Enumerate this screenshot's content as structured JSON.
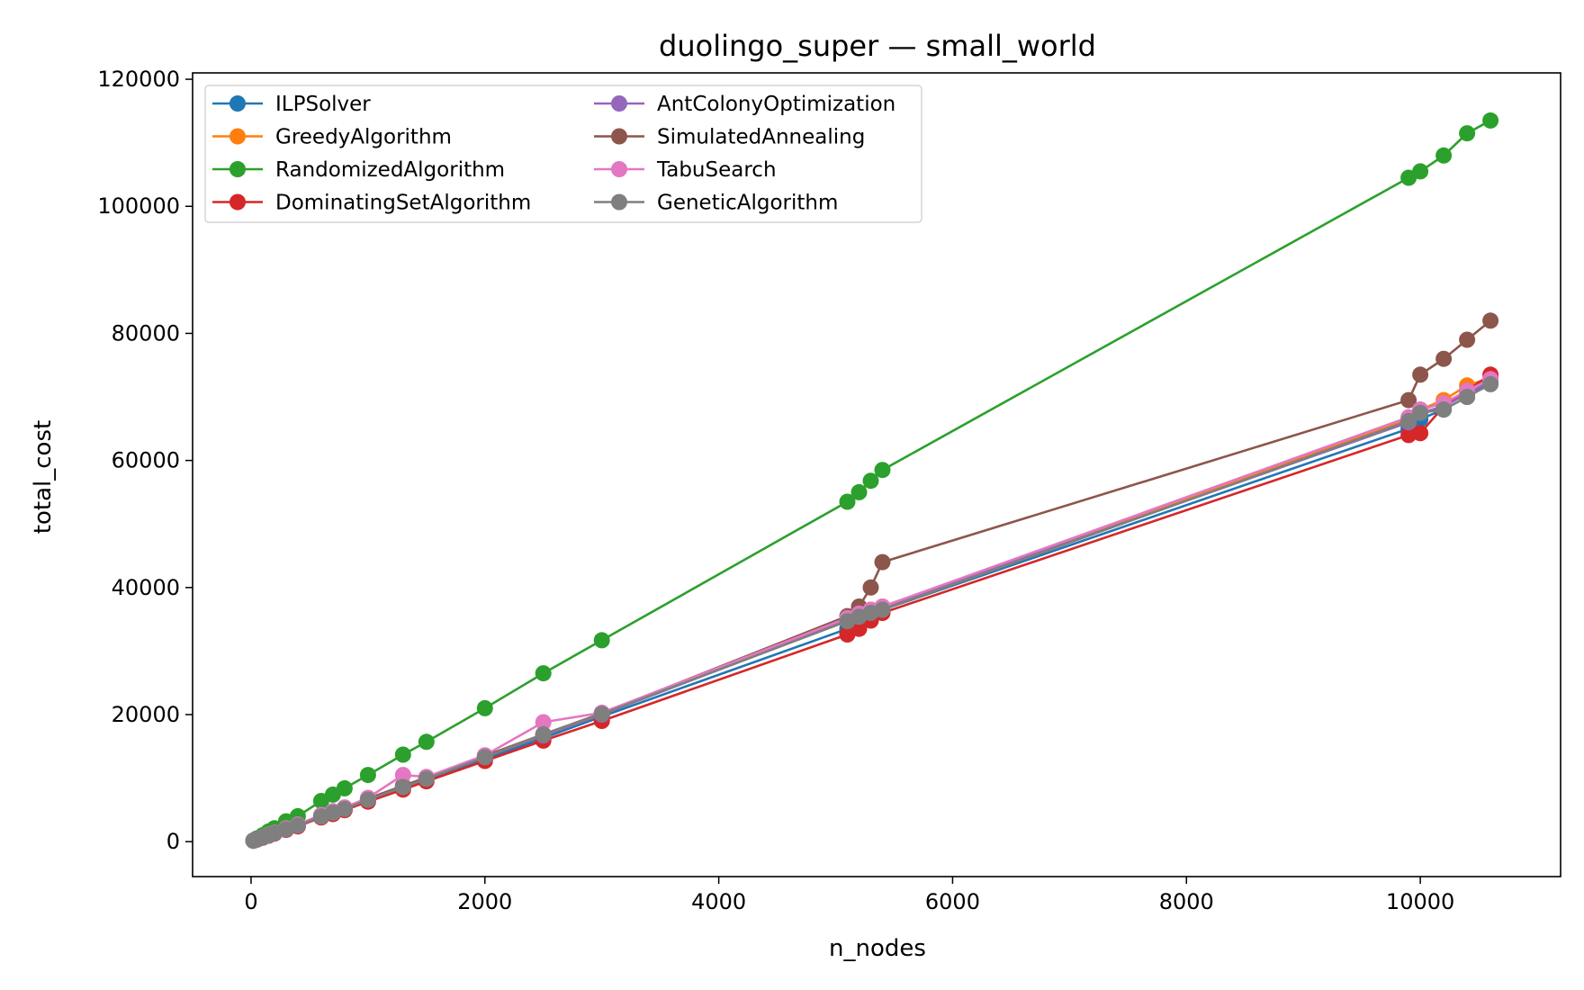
{
  "chart_data": {
    "type": "line",
    "title": "duolingo_super — small_world",
    "xlabel": "n_nodes",
    "ylabel": "total_cost",
    "xlim": [
      -500,
      11200
    ],
    "ylim": [
      -5500,
      121000
    ],
    "xticks": [
      0,
      2000,
      4000,
      6000,
      8000,
      10000
    ],
    "yticks": [
      0,
      20000,
      40000,
      60000,
      80000,
      100000,
      120000
    ],
    "grid": false,
    "legend_position": "top-left",
    "legend_columns": 2,
    "series": [
      {
        "name": "ILPSolver",
        "color": "#1f77b4",
        "x": [
          20,
          50,
          100,
          150,
          200,
          300,
          400,
          600,
          700,
          800,
          1000,
          1300,
          1500,
          2000,
          2500,
          3000,
          5100,
          5200,
          5300,
          5400,
          9900,
          10000,
          10200,
          10400,
          10600
        ],
        "y": [
          150,
          350,
          650,
          1000,
          1300,
          1900,
          2500,
          3900,
          4500,
          5100,
          6500,
          8500,
          9800,
          13000,
          16300,
          19700,
          33500,
          34300,
          35300,
          36500,
          65000,
          66500,
          68000,
          70000,
          72500
        ]
      },
      {
        "name": "GreedyAlgorithm",
        "color": "#ff7f0e",
        "x": [
          20,
          50,
          100,
          150,
          200,
          300,
          400,
          600,
          700,
          800,
          1000,
          1300,
          1500,
          2000,
          2500,
          3000,
          5100,
          5200,
          5300,
          5400,
          9900,
          10000,
          10200,
          10400,
          10600
        ],
        "y": [
          160,
          360,
          700,
          1050,
          1350,
          2000,
          2600,
          4000,
          4600,
          5200,
          6700,
          8700,
          10000,
          13400,
          16800,
          20100,
          35000,
          35800,
          36500,
          37000,
          66500,
          68000,
          69500,
          71800,
          73000
        ]
      },
      {
        "name": "RandomizedAlgorithm",
        "color": "#2ca02c",
        "x": [
          20,
          50,
          100,
          150,
          200,
          300,
          400,
          600,
          700,
          800,
          1000,
          1300,
          1500,
          2000,
          2500,
          3000,
          5100,
          5200,
          5300,
          5400,
          9900,
          10000,
          10200,
          10400,
          10600
        ],
        "y": [
          200,
          500,
          1000,
          1600,
          2100,
          3200,
          4000,
          6400,
          7400,
          8400,
          10500,
          13700,
          15700,
          21000,
          26500,
          31700,
          53500,
          55000,
          56800,
          58500,
          104500,
          105500,
          108000,
          111500,
          113500
        ]
      },
      {
        "name": "DominatingSetAlgorithm",
        "color": "#d62728",
        "x": [
          20,
          50,
          100,
          150,
          200,
          300,
          400,
          600,
          700,
          800,
          1000,
          1300,
          1500,
          2000,
          2500,
          3000,
          5100,
          5200,
          5300,
          5400,
          9900,
          10000,
          10200,
          10400,
          10600
        ],
        "y": [
          140,
          320,
          620,
          950,
          1250,
          1850,
          2400,
          3800,
          4350,
          4950,
          6300,
          8200,
          9500,
          12700,
          15900,
          19000,
          32600,
          33500,
          34800,
          36000,
          64000,
          64300,
          68500,
          71000,
          73500
        ]
      },
      {
        "name": "AntColonyOptimization",
        "color": "#9467bd",
        "x": [
          20,
          50,
          100,
          150,
          200,
          300,
          400,
          600,
          700,
          800,
          1000,
          1300,
          1500,
          2000,
          2500,
          3000,
          5100,
          5200,
          5300,
          5400,
          9900,
          10000,
          10200,
          10400,
          10600
        ],
        "y": [
          150,
          350,
          680,
          1020,
          1320,
          1950,
          2550,
          3950,
          4550,
          5150,
          6600,
          8600,
          9900,
          13300,
          16700,
          20000,
          34800,
          35500,
          36200,
          36800,
          66000,
          67500,
          68500,
          70500,
          72500
        ]
      },
      {
        "name": "SimulatedAnnealing",
        "color": "#8c564b",
        "x": [
          20,
          50,
          100,
          150,
          200,
          300,
          400,
          600,
          700,
          800,
          1000,
          1300,
          1500,
          2000,
          2500,
          3000,
          5100,
          5200,
          5300,
          5400,
          9900,
          10000,
          10200,
          10400,
          10600
        ],
        "y": [
          160,
          370,
          700,
          1050,
          1350,
          2000,
          2600,
          4100,
          4700,
          5300,
          6800,
          8800,
          10100,
          13500,
          16900,
          20200,
          35500,
          37000,
          40000,
          44000,
          69500,
          73500,
          76000,
          79000,
          82000
        ]
      },
      {
        "name": "TabuSearch",
        "color": "#e377c2",
        "x": [
          20,
          50,
          100,
          150,
          200,
          300,
          400,
          600,
          700,
          800,
          1000,
          1300,
          1500,
          2000,
          2500,
          3000,
          5100,
          5200,
          5300,
          5400,
          9900,
          10000,
          10200,
          10400,
          10600
        ],
        "y": [
          160,
          370,
          720,
          1080,
          1400,
          2100,
          2700,
          4200,
          4800,
          5400,
          6900,
          10500,
          10200,
          13600,
          18800,
          20300,
          35200,
          35900,
          36500,
          37000,
          66800,
          68000,
          69000,
          71000,
          72800
        ]
      },
      {
        "name": "GeneticAlgorithm",
        "color": "#7f7f7f",
        "x": [
          20,
          50,
          100,
          150,
          200,
          300,
          400,
          600,
          700,
          800,
          1000,
          1300,
          1500,
          2000,
          2500,
          3000,
          5100,
          5200,
          5300,
          5400,
          9900,
          10000,
          10200,
          10400,
          10600
        ],
        "y": [
          150,
          350,
          680,
          1020,
          1320,
          1950,
          2550,
          3950,
          4550,
          5150,
          6600,
          8600,
          9900,
          13300,
          16900,
          20100,
          34700,
          35400,
          36000,
          36500,
          66200,
          67500,
          68000,
          70000,
          72000
        ]
      }
    ]
  }
}
